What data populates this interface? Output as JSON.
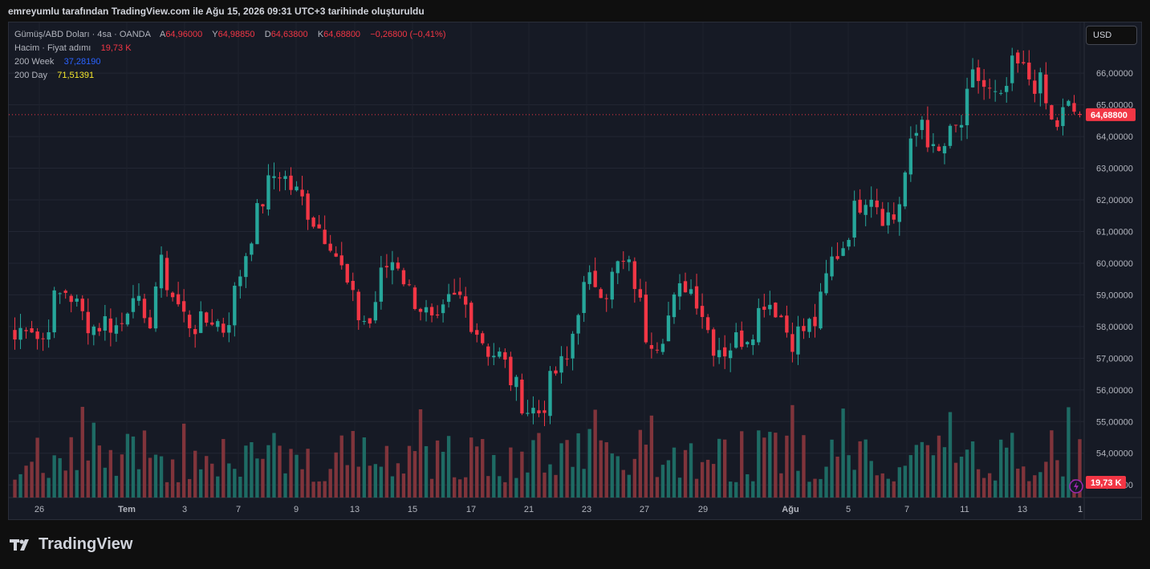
{
  "header": {
    "caption": "emreyumlu tarafından TradingView.com ile Ağu 15, 2026 09:31 UTC+3 tarihinde oluşturuldu"
  },
  "legend": {
    "symbol": "Gümüş/ABD Doları · 4sa · OANDA",
    "open_prefix": "A",
    "open": "64,96000",
    "high_prefix": "Y",
    "high": "64,98850",
    "low_prefix": "D",
    "low": "64,63800",
    "close_prefix": "K",
    "close": "64,68800",
    "change": "−0,26800 (−0,41%)",
    "volume_label": "Hacim · Fiyat adımı",
    "volume_value": "19,73 K",
    "ma_week_label": "200 Week",
    "ma_week_value": "37,28190",
    "ma_day_label": "200 Day",
    "ma_day_value": "71,51391"
  },
  "currency_button": "USD",
  "footer": {
    "brand": "TradingView"
  },
  "colors": {
    "up": "#26a69a",
    "down": "#f23645",
    "up_volume": "#1e6b64",
    "down_volume": "#80343b",
    "last_price_line": "#f23645",
    "ma_week": "#2962ff",
    "ma_day": "#f5e72b"
  },
  "chart_data": {
    "type": "candlestick",
    "title": "Gümüş/ABD Doları · 4sa · OANDA",
    "y_axis_side": "right",
    "y_ticks": [
      "66,00000",
      "65,00000",
      "64,00000",
      "63,00000",
      "62,00000",
      "61,00000",
      "60,00000",
      "59,00000",
      "58,00000",
      "57,00000",
      "56,00000",
      "55,00000",
      "54,00000",
      "53,00000"
    ],
    "y_range": [
      52.6,
      67.6
    ],
    "x_ticks": [
      "26",
      "Tem",
      "3",
      "7",
      "9",
      "13",
      "15",
      "17",
      "21",
      "23",
      "27",
      "29",
      "Ağu",
      "5",
      "7",
      "11",
      "13",
      "1"
    ],
    "last_price": 64.688,
    "last_price_label": "64,68800",
    "last_volume_label": "19,73 K",
    "ohlc_anchor_closes": [
      57.6,
      58.3,
      57.4,
      58.8,
      59.2,
      58.4,
      58.0,
      58.2,
      57.9,
      59.3,
      57.6,
      60.0,
      59.0,
      58.2,
      58.0,
      58.3,
      57.9,
      59.5,
      61.0,
      62.2,
      63.0,
      62.4,
      61.9,
      61.2,
      60.8,
      59.6,
      58.4,
      58.1,
      59.8,
      60.2,
      59.1,
      58.6,
      57.8,
      58.7,
      58.9,
      58.0,
      57.3,
      57.0,
      56.1,
      55.4,
      55.3,
      56.5,
      56.9,
      59.0,
      59.5,
      59.2,
      60.0,
      59.7,
      57.8,
      57.6,
      58.6,
      59.4,
      58.9,
      57.5,
      57.3,
      57.6,
      57.9,
      58.9,
      58.6,
      57.6,
      57.9,
      58.2,
      60.0,
      60.6,
      61.8,
      62.4,
      61.6,
      61.4,
      63.4,
      64.6,
      63.2,
      63.9,
      64.4,
      66.0,
      65.4,
      65.0,
      66.3,
      65.9,
      65.6,
      64.2,
      64.9,
      64.69
    ],
    "volume_range": [
      0,
      55
    ]
  }
}
